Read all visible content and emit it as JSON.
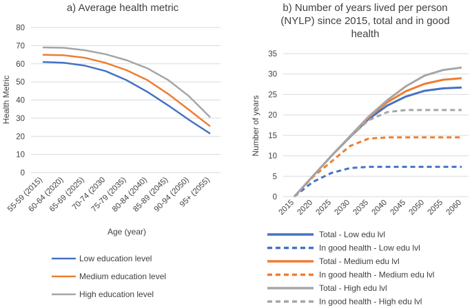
{
  "chart_data": [
    {
      "type": "line",
      "title": "a) Average health metric",
      "xlabel": "Age (year)",
      "ylabel": "Health Metric",
      "ylim": [
        0,
        80
      ],
      "yticks": [
        0,
        10,
        20,
        30,
        40,
        50,
        60,
        70,
        80
      ],
      "grid": true,
      "legend_position": "bottom",
      "categories": [
        "55-59 (2015)",
        "60-64 (2020)",
        "65-69 (2025)",
        "70-74 (2030",
        "75-79 (2035)",
        "80-84 (2040)",
        "85-89 (2045)",
        "90-94 (2050)",
        "95+ (2055)"
      ],
      "series": [
        {
          "name": "Low education level",
          "color": "#4472C4",
          "dash": "solid",
          "values": [
            61,
            60.6,
            59,
            56,
            51,
            44.5,
            37,
            29,
            21.5
          ]
        },
        {
          "name": "Medium education level",
          "color": "#ED7D31",
          "dash": "solid",
          "values": [
            65,
            64.7,
            63.3,
            60.5,
            56.5,
            51,
            43.3,
            34.5,
            25.5
          ]
        },
        {
          "name": "High education level",
          "color": "#A5A5A5",
          "dash": "solid",
          "values": [
            69,
            68.8,
            67.5,
            65.3,
            62,
            57.5,
            51,
            42,
            30.5
          ]
        }
      ]
    },
    {
      "type": "line",
      "title_lines": [
        "b) Number of years lived per person",
        "(NYLP) since 2015, total and in good",
        "health"
      ],
      "xlabel": "",
      "ylabel": "Number of years",
      "ylim": [
        0,
        35
      ],
      "yticks": [
        0,
        5,
        10,
        15,
        20,
        25,
        30,
        35
      ],
      "grid": true,
      "legend_position": "bottom",
      "categories": [
        "2015",
        "2020",
        "2025",
        "2030",
        "2035",
        "2040",
        "2045",
        "2050",
        "2055",
        "2060"
      ],
      "series": [
        {
          "name": "Total - Low edu lvl",
          "color": "#4472C4",
          "dash": "solid",
          "values": [
            0,
            5,
            10,
            14.6,
            19,
            22.3,
            24.5,
            25.9,
            26.5,
            26.7
          ]
        },
        {
          "name": "In good health - Low edu lvl",
          "color": "#4472C4",
          "dash": "dashed",
          "values": [
            0,
            3.6,
            5.8,
            7,
            7.3,
            7.3,
            7.3,
            7.3,
            7.3,
            7.3
          ]
        },
        {
          "name": "Total - Medium edu lvl",
          "color": "#ED7D31",
          "dash": "solid",
          "values": [
            0,
            5,
            10,
            14.7,
            19.4,
            23.1,
            25.8,
            27.6,
            28.6,
            29
          ]
        },
        {
          "name": "In good health - Medium edu lvl",
          "color": "#ED7D31",
          "dash": "dashed",
          "values": [
            0,
            4.8,
            8.6,
            12.4,
            14.2,
            14.5,
            14.5,
            14.5,
            14.5,
            14.5
          ]
        },
        {
          "name": "Total - High edu lvl",
          "color": "#A5A5A5",
          "dash": "solid",
          "values": [
            0,
            5,
            10,
            14.8,
            19.6,
            23.6,
            27,
            29.6,
            31,
            31.6
          ]
        },
        {
          "name": "In good health - High edu lvl",
          "color": "#A5A5A5",
          "dash": "dashed",
          "values": [
            0,
            5,
            10,
            14.6,
            18.7,
            20.7,
            21.2,
            21.2,
            21.2,
            21.2
          ]
        }
      ]
    }
  ]
}
